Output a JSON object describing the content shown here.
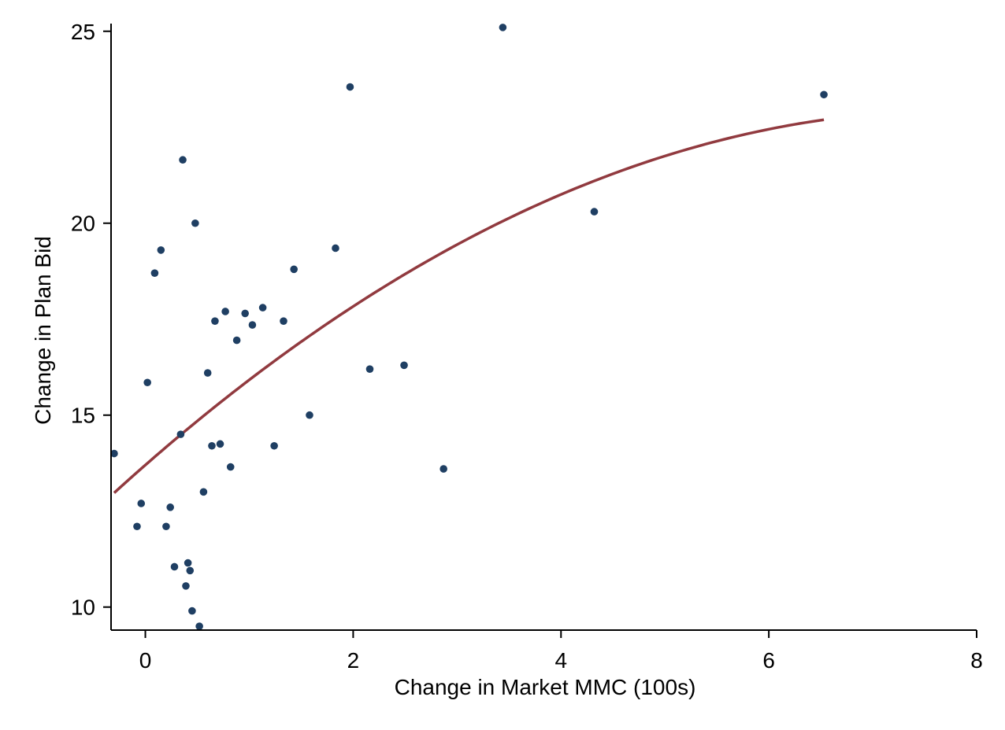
{
  "chart_data": {
    "type": "scatter",
    "title": "",
    "xlabel": "Change in Market MMC (100s)",
    "ylabel": "Change in Plan Bid",
    "xlim": [
      -0.33,
      8
    ],
    "ylim": [
      9.4,
      25.2
    ],
    "xticks": [
      0,
      2,
      4,
      6,
      8
    ],
    "yticks": [
      10,
      15,
      20,
      25
    ],
    "xtick_labels": [
      "0",
      "2",
      "4",
      "6",
      "8"
    ],
    "ytick_labels": [
      "10",
      "15",
      "20",
      "25"
    ],
    "grid": false,
    "legend": "none",
    "colors": {
      "points": "#1f3f63",
      "fit": "#913a3f"
    },
    "points": [
      {
        "x": -0.3,
        "y": 14.0
      },
      {
        "x": -0.08,
        "y": 12.1
      },
      {
        "x": -0.04,
        "y": 12.7
      },
      {
        "x": 0.02,
        "y": 15.85
      },
      {
        "x": 0.09,
        "y": 18.7
      },
      {
        "x": 0.15,
        "y": 19.3
      },
      {
        "x": 0.2,
        "y": 12.1
      },
      {
        "x": 0.24,
        "y": 12.6
      },
      {
        "x": 0.28,
        "y": 11.05
      },
      {
        "x": 0.34,
        "y": 14.5
      },
      {
        "x": 0.36,
        "y": 21.65
      },
      {
        "x": 0.39,
        "y": 10.55
      },
      {
        "x": 0.41,
        "y": 11.15
      },
      {
        "x": 0.43,
        "y": 10.95
      },
      {
        "x": 0.45,
        "y": 9.9
      },
      {
        "x": 0.48,
        "y": 20.0
      },
      {
        "x": 0.52,
        "y": 9.5
      },
      {
        "x": 0.56,
        "y": 13.0
      },
      {
        "x": 0.6,
        "y": 16.1
      },
      {
        "x": 0.64,
        "y": 14.2
      },
      {
        "x": 0.67,
        "y": 17.45
      },
      {
        "x": 0.72,
        "y": 14.25
      },
      {
        "x": 0.77,
        "y": 17.7
      },
      {
        "x": 0.82,
        "y": 13.65
      },
      {
        "x": 0.88,
        "y": 16.95
      },
      {
        "x": 0.96,
        "y": 17.65
      },
      {
        "x": 1.03,
        "y": 17.35
      },
      {
        "x": 1.13,
        "y": 17.8
      },
      {
        "x": 1.24,
        "y": 14.2
      },
      {
        "x": 1.33,
        "y": 17.45
      },
      {
        "x": 1.43,
        "y": 18.8
      },
      {
        "x": 1.58,
        "y": 15.0
      },
      {
        "x": 1.83,
        "y": 19.35
      },
      {
        "x": 1.97,
        "y": 23.55
      },
      {
        "x": 2.16,
        "y": 16.2
      },
      {
        "x": 2.49,
        "y": 16.3
      },
      {
        "x": 2.87,
        "y": 13.6
      },
      {
        "x": 3.44,
        "y": 25.1
      },
      {
        "x": 4.32,
        "y": 20.3
      },
      {
        "x": 6.53,
        "y": 23.35
      }
    ],
    "fit": {
      "type": "quadratic",
      "x_range": [
        -0.3,
        6.53
      ],
      "coefficients": {
        "a": 13.7,
        "b": 2.37,
        "c": -0.152
      }
    }
  }
}
